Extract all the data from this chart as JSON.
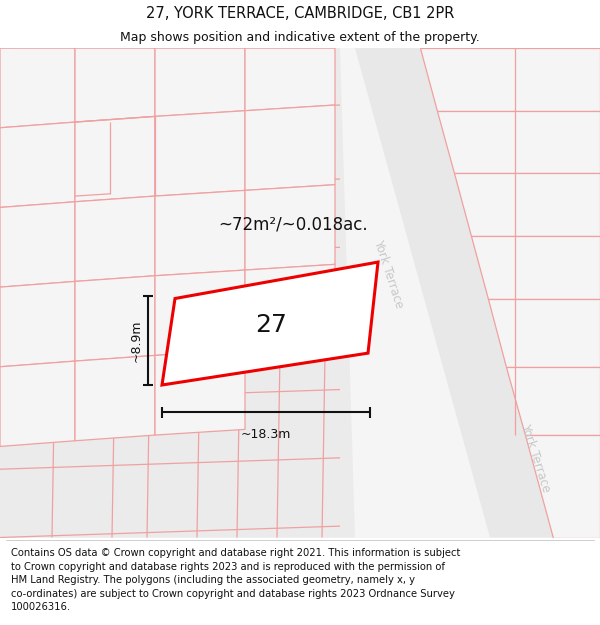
{
  "title": "27, YORK TERRACE, CAMBRIDGE, CB1 2PR",
  "subtitle": "Map shows position and indicative extent of the property.",
  "footer": "Contains OS data © Crown copyright and database right 2021. This information is subject\nto Crown copyright and database rights 2023 and is reproduced with the permission of\nHM Land Registry. The polygons (including the associated geometry, namely x, y\nco-ordinates) are subject to Crown copyright and database rights 2023 Ordnance Survey\n100026316.",
  "area_label": "~72m²/~0.018ac.",
  "width_label": "~18.3m",
  "height_label": "~8.9m",
  "number_label": "27",
  "map_bg": "#f5f5f5",
  "road_fill": "#e8e8e8",
  "block_fill": "#ebebeb",
  "pink": "#f0a0a0",
  "red": "#ee0000",
  "black": "#111111",
  "white": "#ffffff",
  "road_text": "#c8c8c8",
  "title_fontsize": 10.5,
  "subtitle_fontsize": 9,
  "footer_fontsize": 7.2,
  "label_fontsize": 12,
  "dim_fontsize": 9,
  "num_fontsize": 18
}
